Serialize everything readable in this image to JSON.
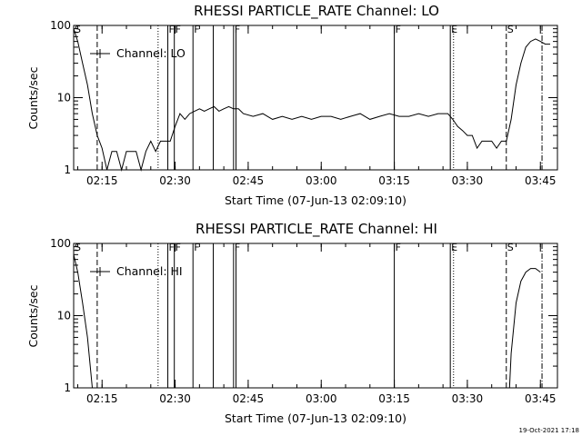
{
  "chart_data": [
    {
      "type": "line",
      "title": "RHESSI PARTICLE_RATE Channel: LO",
      "xlabel": "Start Time (07-Jun-13 02:09:10)",
      "ylabel": "Counts/sec",
      "y_scale": "log",
      "ylim": [
        1,
        100
      ],
      "xlim": [
        "02:09:10",
        "03:48:30"
      ],
      "x_ticks": [
        "02:15",
        "02:30",
        "02:45",
        "03:00",
        "03:15",
        "03:30",
        "03:45"
      ],
      "y_ticks": [
        "1",
        "10",
        "100"
      ],
      "legend": "Channel: LO",
      "legend_position": "top-left",
      "x": [
        "02:09:10",
        "02:10:00",
        "02:11:00",
        "02:12:00",
        "02:13:00",
        "02:14:00",
        "02:15:00",
        "02:16:00",
        "02:17:00",
        "02:18:00",
        "02:19:00",
        "02:20:00",
        "02:21:00",
        "02:22:00",
        "02:23:00",
        "02:24:00",
        "02:25:00",
        "02:26:00",
        "02:27:00",
        "02:28:00",
        "02:29:00",
        "02:30:00",
        "02:31:00",
        "02:32:00",
        "02:33:00",
        "02:34:00",
        "02:35:00",
        "02:36:00",
        "02:37:00",
        "02:38:00",
        "02:39:00",
        "02:40:00",
        "02:41:00",
        "02:42:00",
        "02:43:00",
        "02:44:00",
        "02:46:00",
        "02:48:00",
        "02:50:00",
        "02:52:00",
        "02:54:00",
        "02:56:00",
        "02:58:00",
        "03:00:00",
        "03:02:00",
        "03:04:00",
        "03:06:00",
        "03:08:00",
        "03:10:00",
        "03:12:00",
        "03:14:00",
        "03:16:00",
        "03:18:00",
        "03:20:00",
        "03:22:00",
        "03:24:00",
        "03:26:00",
        "03:27:00",
        "03:28:00",
        "03:29:00",
        "03:30:00",
        "03:31:00",
        "03:32:00",
        "03:33:00",
        "03:34:00",
        "03:35:00",
        "03:36:00",
        "03:37:00",
        "03:38:00",
        "03:39:00",
        "03:40:00",
        "03:41:00",
        "03:42:00",
        "03:43:00",
        "03:44:00",
        "03:45:00",
        "03:46:00",
        "03:47:00"
      ],
      "series": [
        {
          "name": "Channel: LO",
          "values": [
            90,
            60,
            30,
            15,
            6,
            3,
            2,
            1,
            1.8,
            1.8,
            1,
            1.8,
            1.8,
            1.8,
            1,
            1.8,
            2.5,
            1.8,
            2.5,
            2.5,
            2.5,
            4,
            6,
            5,
            6,
            6.5,
            7,
            6.5,
            7,
            7.5,
            6.5,
            7,
            7.5,
            7,
            7,
            6,
            5.5,
            6,
            5,
            5.5,
            5,
            5.5,
            5,
            5.5,
            5.5,
            5,
            5.5,
            6,
            5,
            5.5,
            6,
            5.5,
            5.5,
            6,
            5.5,
            6,
            6,
            5,
            4,
            3.5,
            3,
            3,
            2,
            2.5,
            2.5,
            2.5,
            2,
            2.5,
            2.5,
            5,
            15,
            30,
            50,
            60,
            65,
            60,
            55,
            55
          ]
        }
      ],
      "vertical_markers": [
        {
          "label": "S",
          "time": "02:09:10",
          "style": "solid"
        },
        {
          "time": "02:14:00",
          "style": "dashed"
        },
        {
          "time": "02:26:30",
          "style": "dotted"
        },
        {
          "label": "F",
          "time": "02:28:30",
          "style": "solid"
        },
        {
          "label": "F",
          "time": "02:29:50",
          "style": "solid"
        },
        {
          "label": "F",
          "time": "02:33:40",
          "style": "solid"
        },
        {
          "time": "02:37:50",
          "style": "solid"
        },
        {
          "label": "F",
          "time": "02:42:00",
          "style": "solid"
        },
        {
          "time": "02:42:30",
          "style": "solid"
        },
        {
          "label": "F",
          "time": "03:15:00",
          "style": "solid"
        },
        {
          "label": "E",
          "time": "03:26:30",
          "style": "solid"
        },
        {
          "time": "03:27:10",
          "style": "dotted"
        },
        {
          "label": "S",
          "time": "03:38:00",
          "style": "dashed"
        },
        {
          "time": "03:45:20",
          "style": "dashdot"
        }
      ]
    },
    {
      "type": "line",
      "title": "RHESSI PARTICLE_RATE Channel: HI",
      "xlabel": "Start Time (07-Jun-13 02:09:10)",
      "ylabel": "Counts/sec",
      "y_scale": "log",
      "ylim": [
        1,
        100
      ],
      "xlim": [
        "02:09:10",
        "03:48:30"
      ],
      "x_ticks": [
        "02:15",
        "02:30",
        "02:45",
        "03:00",
        "03:15",
        "03:30",
        "03:45"
      ],
      "y_ticks": [
        "1",
        "10",
        "100"
      ],
      "legend": "Channel: HI",
      "legend_position": "top-left",
      "segments": [
        {
          "x": [
            "02:09:10",
            "02:10:00",
            "02:11:00",
            "02:12:00",
            "02:13:00"
          ],
          "values": [
            70,
            40,
            15,
            5,
            1
          ]
        },
        {
          "x": [
            "03:38:40",
            "03:39:00",
            "03:40:00",
            "03:41:00",
            "03:42:00",
            "03:43:00",
            "03:44:00",
            "03:45:00"
          ],
          "values": [
            1,
            3,
            15,
            30,
            40,
            45,
            45,
            40
          ]
        }
      ],
      "series": [
        {
          "name": "Channel: HI"
        }
      ],
      "vertical_markers": [
        {
          "label": "S",
          "time": "02:09:10",
          "style": "solid"
        },
        {
          "time": "02:14:00",
          "style": "dashed"
        },
        {
          "time": "02:26:30",
          "style": "dotted"
        },
        {
          "label": "F",
          "time": "02:28:30",
          "style": "solid"
        },
        {
          "label": "F",
          "time": "02:29:50",
          "style": "solid"
        },
        {
          "label": "F",
          "time": "02:33:40",
          "style": "solid"
        },
        {
          "time": "02:37:50",
          "style": "solid"
        },
        {
          "label": "F",
          "time": "02:42:00",
          "style": "solid"
        },
        {
          "time": "02:42:30",
          "style": "solid"
        },
        {
          "label": "F",
          "time": "03:15:00",
          "style": "solid"
        },
        {
          "label": "E",
          "time": "03:26:30",
          "style": "solid"
        },
        {
          "time": "03:27:10",
          "style": "dotted"
        },
        {
          "label": "S",
          "time": "03:38:00",
          "style": "dashed"
        },
        {
          "time": "03:45:20",
          "style": "dashdot"
        }
      ]
    }
  ],
  "footer": {
    "timestamp": "19-Oct-2021 17:18"
  }
}
